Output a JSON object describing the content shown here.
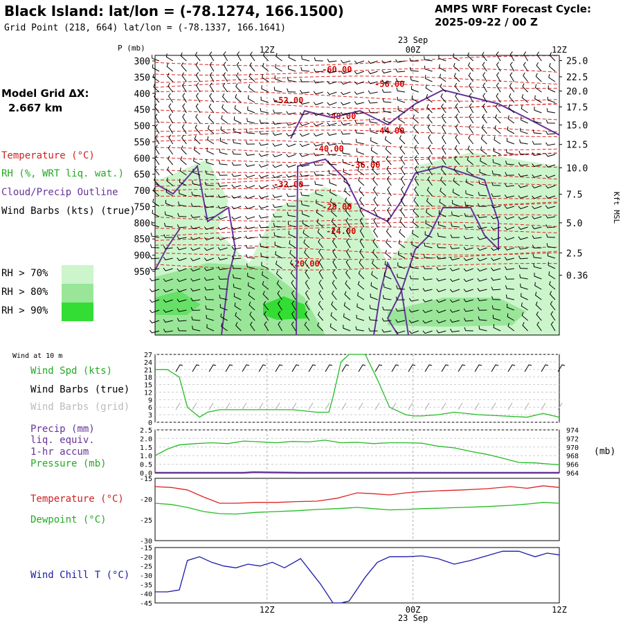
{
  "header": {
    "title": "Black Island:  lat/lon = (-78.1274, 166.1500)",
    "subtitle": "Grid Point (218, 664) lat/lon = (-78.1337, 166.1641)",
    "cycle_line1": "AMPS WRF Forecast Cycle:",
    "cycle_line2": "2025-09-22 / 00  Z"
  },
  "side": {
    "grid_title": "Model Grid ΔX:",
    "grid_value": "2.667 km",
    "legend": [
      {
        "label": "Temperature (°C)",
        "color": "#cc2222"
      },
      {
        "label": "RH (%, WRT liq. wat.)",
        "color": "#22aa22"
      },
      {
        "label": "Cloud/Precip Outline",
        "color": "#663399"
      },
      {
        "label": "Wind Barbs (kts) (true)",
        "color": "#000000"
      }
    ],
    "rh_levels": [
      {
        "label": "RH > 70%",
        "color": "#ccf5cc"
      },
      {
        "label": "RH > 80%",
        "color": "#99e699"
      },
      {
        "label": "RH > 90%",
        "color": "#33dd33"
      }
    ]
  },
  "colors": {
    "temperature": "#dd2222",
    "rh": "#22bb22",
    "cloud": "#663399",
    "precip": "#663399",
    "wind": "#000000",
    "wind_grid": "#aaaaaa",
    "windchill": "#1a1aa8",
    "grid": "#aaaaaa"
  },
  "time_axis": {
    "date_label": "23 Sep",
    "ticks": [
      "12Z",
      "00Z",
      "12Z"
    ]
  },
  "chart_data": [
    {
      "type": "contour",
      "name": "time-height cross section",
      "yaxis_label": "P (mb)",
      "y_ticks": [
        300,
        350,
        400,
        450,
        500,
        550,
        600,
        650,
        700,
        750,
        800,
        850,
        900,
        950
      ],
      "right_ticks": [
        "25.0",
        "22.5",
        "20.0",
        "17.5",
        "15.0",
        "12.5",
        "10.0",
        "7.5",
        "5.0",
        "2.5",
        "0.36"
      ],
      "right_tick_pressures": [
        299,
        349,
        393,
        442,
        498,
        558,
        630,
        712,
        800,
        893,
        962
      ],
      "right_label": "Kft MSL",
      "temperature_labels": [
        {
          "text": "-60.00",
          "t": 0.45,
          "p": 335
        },
        {
          "text": "-56.00",
          "t": 0.58,
          "p": 380
        },
        {
          "text": "-52.00",
          "t": 0.33,
          "p": 430
        },
        {
          "text": "-48.00",
          "t": 0.46,
          "p": 480
        },
        {
          "text": "-44.00",
          "t": 0.58,
          "p": 525
        },
        {
          "text": "-40.00",
          "t": 0.43,
          "p": 580
        },
        {
          "text": "-36.00",
          "t": 0.52,
          "p": 630
        },
        {
          "text": "-32.00",
          "t": 0.33,
          "p": 690
        },
        {
          "text": "-28.00",
          "t": 0.45,
          "p": 760
        },
        {
          "text": "-24.00",
          "t": 0.46,
          "p": 835
        },
        {
          "text": "-20.00",
          "t": 0.37,
          "p": 935
        }
      ]
    },
    {
      "type": "line",
      "name": "wind",
      "labels": [
        "Wind at 10 m",
        "Wind Spd (kts)",
        "Wind Barbs (true)",
        "Wind Barbs (grid)"
      ],
      "y_ticks": [
        0,
        3,
        6,
        9,
        12,
        15,
        18,
        21,
        24,
        27
      ],
      "ylim": [
        0,
        27
      ],
      "series": [
        {
          "name": "Wind Spd (kts)",
          "x": [
            0.0,
            0.03,
            0.06,
            0.08,
            0.11,
            0.13,
            0.16,
            0.22,
            0.28,
            0.34,
            0.4,
            0.43,
            0.44,
            0.46,
            0.48,
            0.52,
            0.55,
            0.58,
            0.62,
            0.64,
            0.66,
            0.7,
            0.74,
            0.8,
            0.86,
            0.92,
            0.96,
            1.0
          ],
          "y": [
            21,
            21,
            18,
            6,
            2,
            4,
            5,
            5,
            5,
            5,
            4,
            4,
            10,
            24,
            27,
            27,
            17,
            6,
            3,
            2.5,
            2.5,
            3,
            4,
            3,
            2.5,
            2,
            3.5,
            2
          ]
        }
      ]
    },
    {
      "type": "line",
      "name": "precip-pressure",
      "labels": [
        "Precip (mm)",
        "liq. equiv.",
        "1-hr accum",
        "Pressure (mb)"
      ],
      "y_ticks_left": [
        "0.0",
        "0.5",
        "1.0",
        "1.5",
        "2.0",
        "2.5"
      ],
      "ylim_left": [
        0,
        2.5
      ],
      "y_ticks_right": [
        964,
        966,
        968,
        970,
        972,
        974
      ],
      "ylim_right": [
        964,
        974
      ],
      "right_unit": "(mb)",
      "series": [
        {
          "name": "Pressure (mb)",
          "axis": "right",
          "x": [
            0.0,
            0.03,
            0.06,
            0.1,
            0.14,
            0.18,
            0.22,
            0.26,
            0.3,
            0.34,
            0.38,
            0.42,
            0.46,
            0.5,
            0.54,
            0.58,
            0.62,
            0.66,
            0.7,
            0.74,
            0.78,
            0.82,
            0.86,
            0.9,
            0.94,
            0.98,
            1.0
          ],
          "y": [
            968.0,
            969.5,
            970.5,
            970.8,
            971.0,
            970.8,
            971.4,
            971.2,
            971.0,
            971.3,
            971.2,
            971.6,
            971.0,
            971.1,
            970.8,
            971.0,
            971.0,
            970.9,
            970.2,
            969.8,
            969.0,
            968.3,
            967.4,
            966.4,
            966.3,
            966.0,
            965.9
          ]
        },
        {
          "name": "Precip (mm)",
          "axis": "left",
          "x": [
            0.0,
            0.22,
            0.24,
            0.26,
            0.36,
            1.0
          ],
          "y": [
            0,
            0,
            0.03,
            0.03,
            0,
            0
          ]
        }
      ]
    },
    {
      "type": "line",
      "name": "temperature-dewpoint",
      "labels": [
        "Temperature (°C)",
        "Dewpoint (°C)"
      ],
      "y_ticks": [
        -30,
        -25,
        -20,
        -15
      ],
      "ylim": [
        -30,
        -15
      ],
      "series": [
        {
          "name": "Temperature (°C)",
          "x": [
            0.0,
            0.04,
            0.08,
            0.12,
            0.16,
            0.2,
            0.25,
            0.3,
            0.35,
            0.4,
            0.45,
            0.5,
            0.54,
            0.58,
            0.62,
            0.66,
            0.7,
            0.76,
            0.82,
            0.88,
            0.92,
            0.96,
            1.0
          ],
          "y": [
            -17.0,
            -17.2,
            -17.8,
            -19.5,
            -21.0,
            -21.0,
            -20.8,
            -20.8,
            -20.6,
            -20.5,
            -19.8,
            -18.5,
            -18.7,
            -19.0,
            -18.5,
            -18.2,
            -18.0,
            -17.8,
            -17.5,
            -17.0,
            -17.4,
            -16.8,
            -17.2
          ]
        },
        {
          "name": "Dewpoint (°C)",
          "x": [
            0.0,
            0.04,
            0.08,
            0.12,
            0.16,
            0.2,
            0.25,
            0.3,
            0.35,
            0.4,
            0.45,
            0.5,
            0.54,
            0.58,
            0.62,
            0.66,
            0.7,
            0.76,
            0.82,
            0.88,
            0.92,
            0.96,
            1.0
          ],
          "y": [
            -21.0,
            -21.3,
            -22.0,
            -23.0,
            -23.5,
            -23.6,
            -23.2,
            -23.0,
            -22.8,
            -22.5,
            -22.3,
            -22.0,
            -22.3,
            -22.6,
            -22.5,
            -22.3,
            -22.2,
            -22.0,
            -21.8,
            -21.5,
            -21.2,
            -20.8,
            -21.0
          ]
        }
      ]
    },
    {
      "type": "line",
      "name": "wind-chill",
      "labels": [
        "Wind Chill T (°C)"
      ],
      "y_ticks": [
        -45,
        -40,
        -35,
        -30,
        -25,
        -20,
        -15
      ],
      "ylim": [
        -45,
        -15
      ],
      "series": [
        {
          "name": "Wind Chill T (°C)",
          "x": [
            0.0,
            0.03,
            0.06,
            0.08,
            0.11,
            0.14,
            0.17,
            0.2,
            0.23,
            0.26,
            0.29,
            0.32,
            0.36,
            0.41,
            0.44,
            0.46,
            0.48,
            0.52,
            0.55,
            0.58,
            0.62,
            0.66,
            0.7,
            0.74,
            0.78,
            0.82,
            0.86,
            0.9,
            0.94,
            0.97,
            1.0
          ],
          "y": [
            -39,
            -39,
            -38,
            -22,
            -20,
            -23,
            -25,
            -26,
            -24,
            -25,
            -23,
            -26,
            -21,
            -35,
            -45,
            -45,
            -44,
            -31,
            -23,
            -20,
            -20,
            -19.5,
            -21,
            -24,
            -22,
            -19.5,
            -17,
            -17,
            -20,
            -18,
            -19
          ]
        }
      ]
    }
  ]
}
